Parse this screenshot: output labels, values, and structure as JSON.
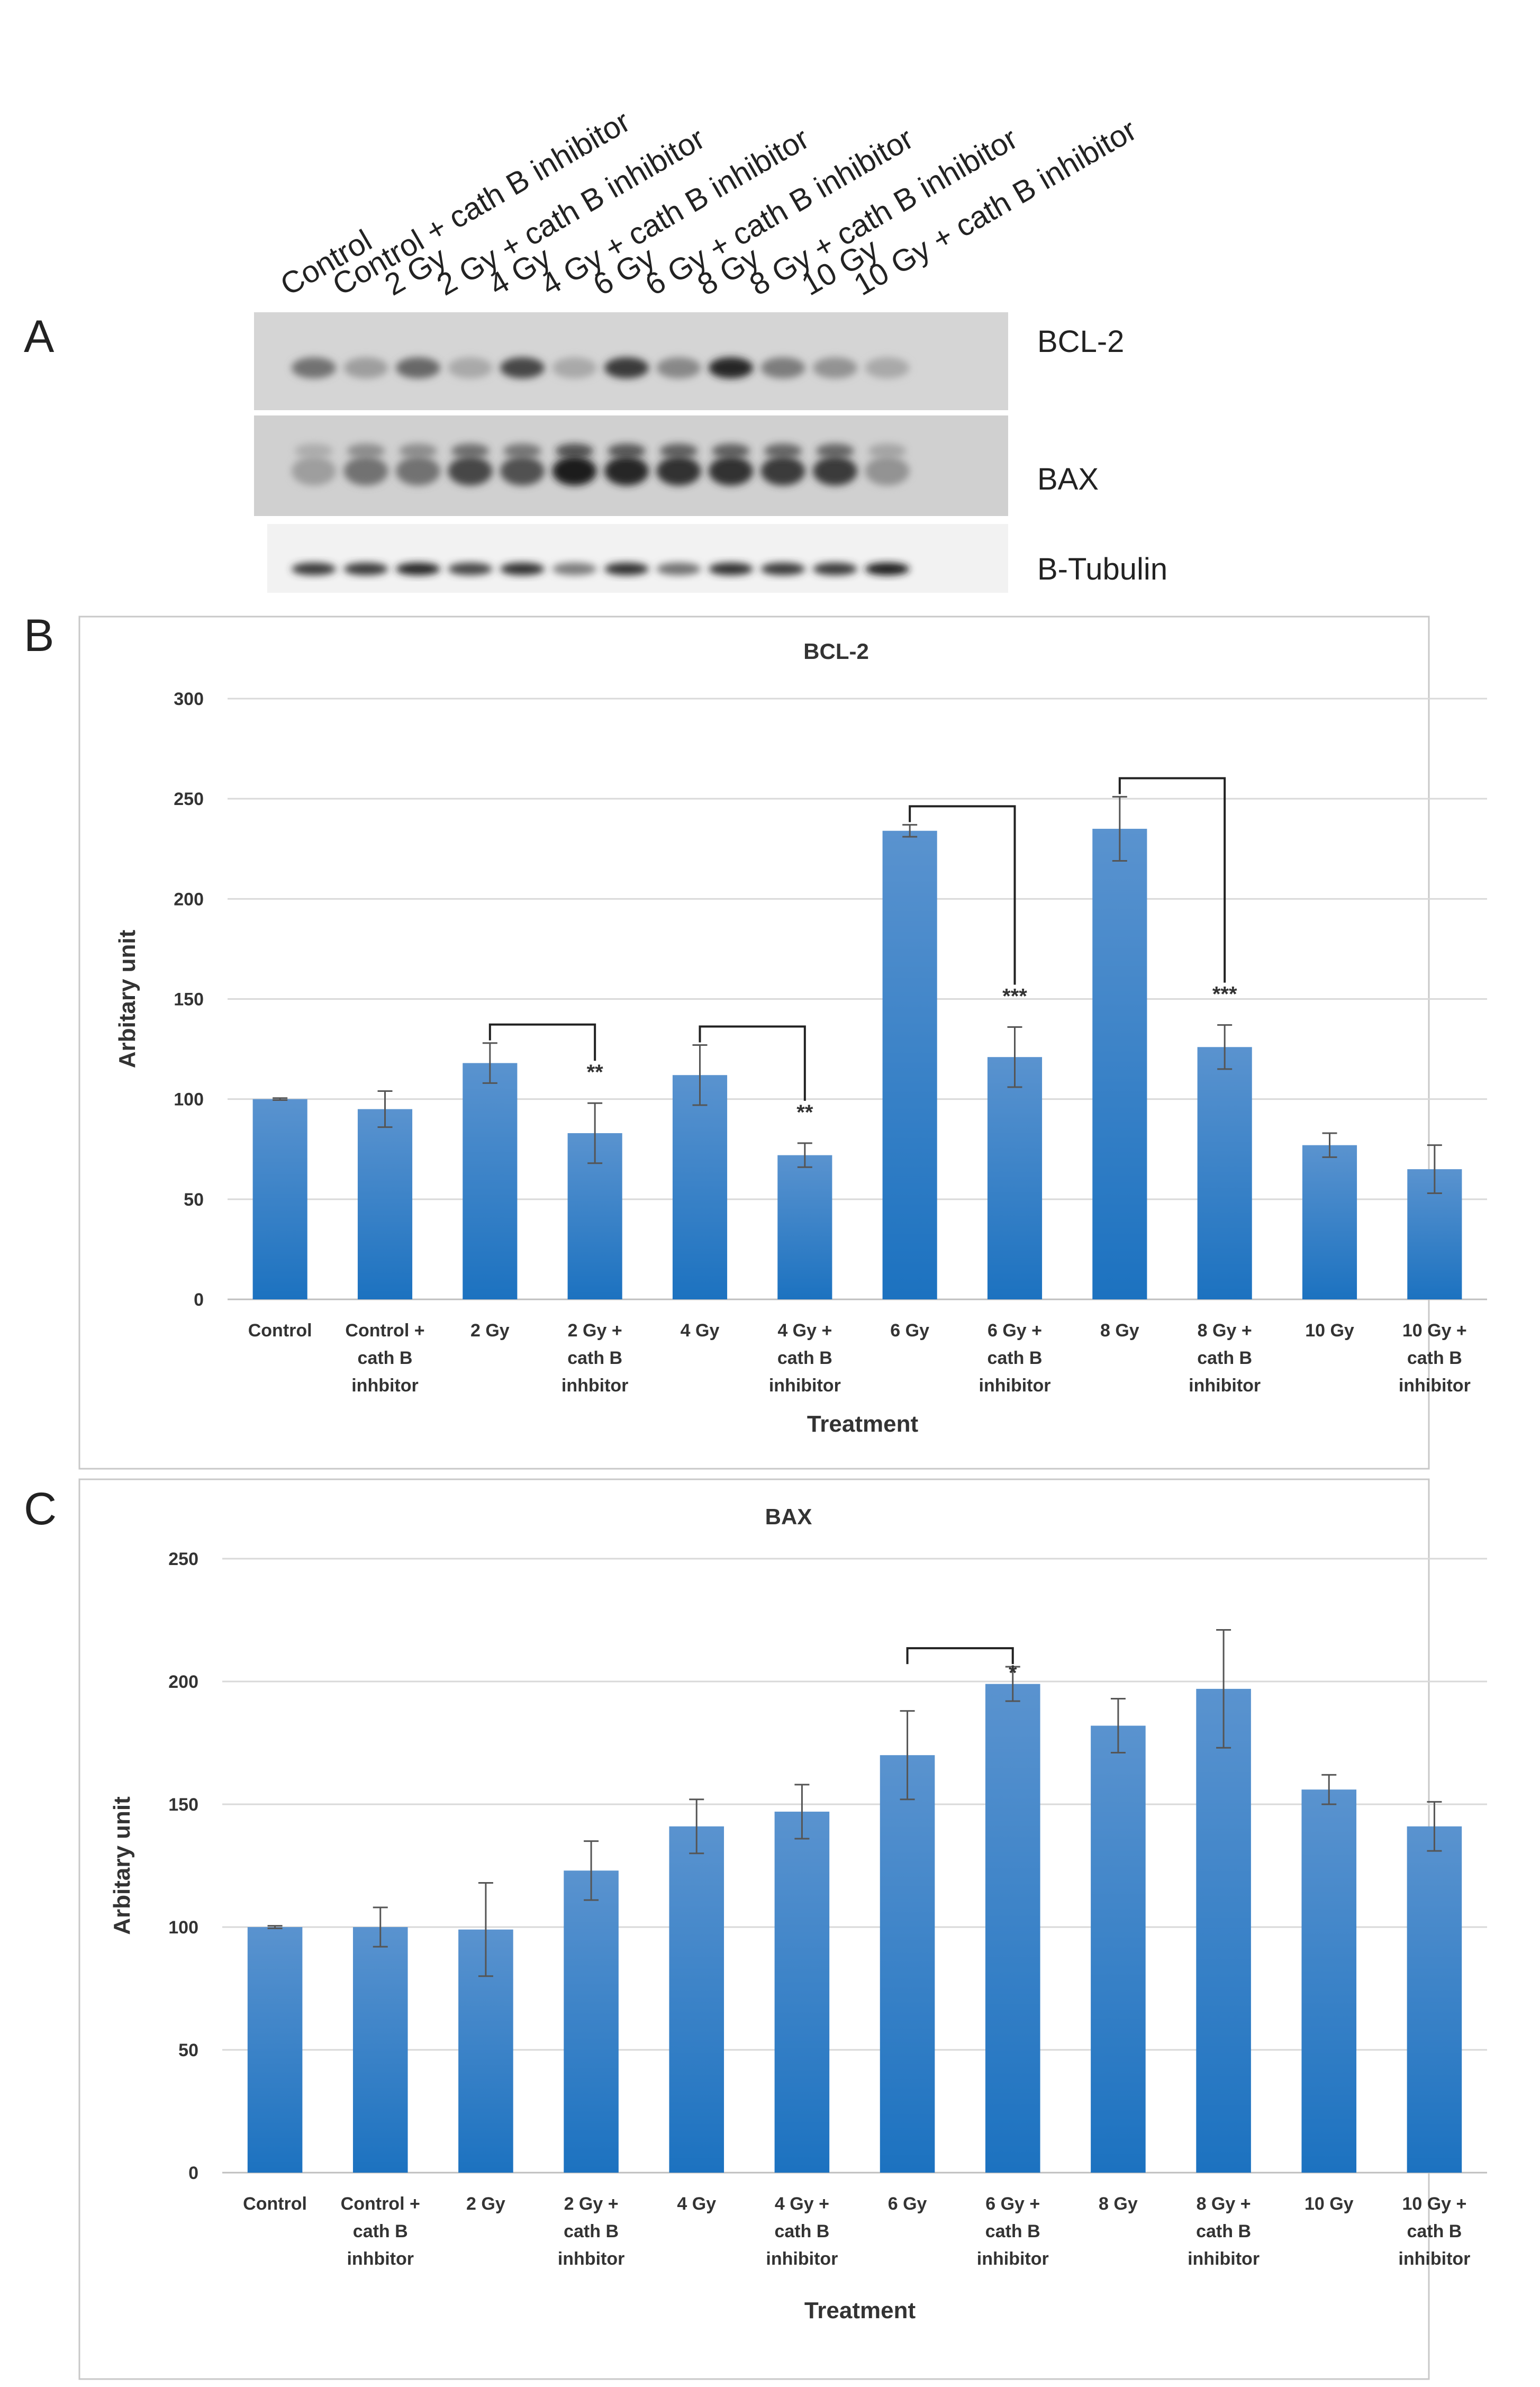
{
  "panel_a": {
    "letter": "A",
    "lanes": [
      "Control",
      "Control + cath B inhibitor",
      "2 Gy",
      "2 Gy + cath B inhibitor",
      "4 Gy",
      "4 Gy + cath B inhibitor",
      "6 Gy",
      "6 Gy + cath B inhibitor",
      "8 Gy",
      "8 Gy + cath B inhibitor",
      "10 Gy",
      "10 Gy + cath B inhibitor"
    ],
    "blots": [
      {
        "label": "BCL-2",
        "intensity": [
          0.55,
          0.35,
          0.6,
          0.3,
          0.75,
          0.3,
          0.8,
          0.45,
          0.9,
          0.5,
          0.4,
          0.3
        ]
      },
      {
        "label": "BAX",
        "intensity": [
          0.35,
          0.55,
          0.55,
          0.75,
          0.7,
          0.95,
          0.9,
          0.85,
          0.85,
          0.8,
          0.8,
          0.4
        ]
      },
      {
        "label": "B-Tubulin",
        "intensity": [
          0.8,
          0.8,
          0.9,
          0.75,
          0.85,
          0.5,
          0.85,
          0.55,
          0.85,
          0.8,
          0.8,
          0.95
        ]
      }
    ]
  },
  "chart_data": [
    {
      "panel": "B",
      "type": "bar",
      "title": "BCL-2",
      "xlabel": "Treatment",
      "ylabel": "Arbitary unit",
      "ylim": [
        0,
        300
      ],
      "yticks": [
        0,
        50,
        100,
        150,
        200,
        250,
        300
      ],
      "categories": [
        [
          "Control"
        ],
        [
          "Control +",
          "cath B",
          "inhbitor"
        ],
        [
          "2 Gy"
        ],
        [
          "2 Gy +",
          "cath B",
          "inhbitor"
        ],
        [
          "4 Gy"
        ],
        [
          "4 Gy +",
          "cath B",
          "inhibitor"
        ],
        [
          "6 Gy"
        ],
        [
          "6 Gy +",
          "cath B",
          "inhibitor"
        ],
        [
          "8 Gy"
        ],
        [
          "8 Gy +",
          "cath B",
          "inhibitor"
        ],
        [
          "10 Gy"
        ],
        [
          "10 Gy +",
          "cath B",
          "inhibitor"
        ]
      ],
      "values": [
        100,
        95,
        118,
        83,
        112,
        72,
        234,
        121,
        235,
        126,
        77,
        65
      ],
      "errors": [
        0.5,
        9,
        10,
        15,
        15,
        6,
        3,
        15,
        16,
        11,
        6,
        12
      ],
      "significance": [
        {
          "from": 2,
          "to": 3,
          "label": "**"
        },
        {
          "from": 4,
          "to": 5,
          "label": "**"
        },
        {
          "from": 6,
          "to": 7,
          "label": "***"
        },
        {
          "from": 8,
          "to": 9,
          "label": "***"
        }
      ],
      "grid": true
    },
    {
      "panel": "C",
      "type": "bar",
      "title": "BAX",
      "xlabel": "Treatment",
      "ylabel": "Arbitary unit",
      "ylim": [
        0,
        250
      ],
      "yticks": [
        0,
        50,
        100,
        150,
        200,
        250
      ],
      "categories": [
        [
          "Control"
        ],
        [
          "Control +",
          "cath B",
          "inhbitor"
        ],
        [
          "2 Gy"
        ],
        [
          "2 Gy +",
          "cath B",
          "inhbitor"
        ],
        [
          "4 Gy"
        ],
        [
          "4 Gy +",
          "cath B",
          "inhibitor"
        ],
        [
          "6 Gy"
        ],
        [
          "6 Gy +",
          "cath B",
          "inhibitor"
        ],
        [
          "8 Gy"
        ],
        [
          "8 Gy +",
          "cath B",
          "inhibitor"
        ],
        [
          "10 Gy"
        ],
        [
          "10 Gy +",
          "cath B",
          "inhibitor"
        ]
      ],
      "values": [
        100,
        100,
        99,
        123,
        141,
        147,
        170,
        199,
        182,
        197,
        156,
        141
      ],
      "errors": [
        0.5,
        8,
        19,
        12,
        11,
        11,
        18,
        7,
        11,
        24,
        6,
        10
      ],
      "significance": [
        {
          "from": 6,
          "to": 7,
          "label": "*"
        }
      ],
      "grid": true
    }
  ],
  "colors": {
    "bar_top": "#5a93cf",
    "bar_bottom": "#1c72c0",
    "grid": "#d9d9d9",
    "axis": "#bfbfbf",
    "frame": "#c8c8c8",
    "error": "#555555",
    "bracket": "#222222"
  }
}
